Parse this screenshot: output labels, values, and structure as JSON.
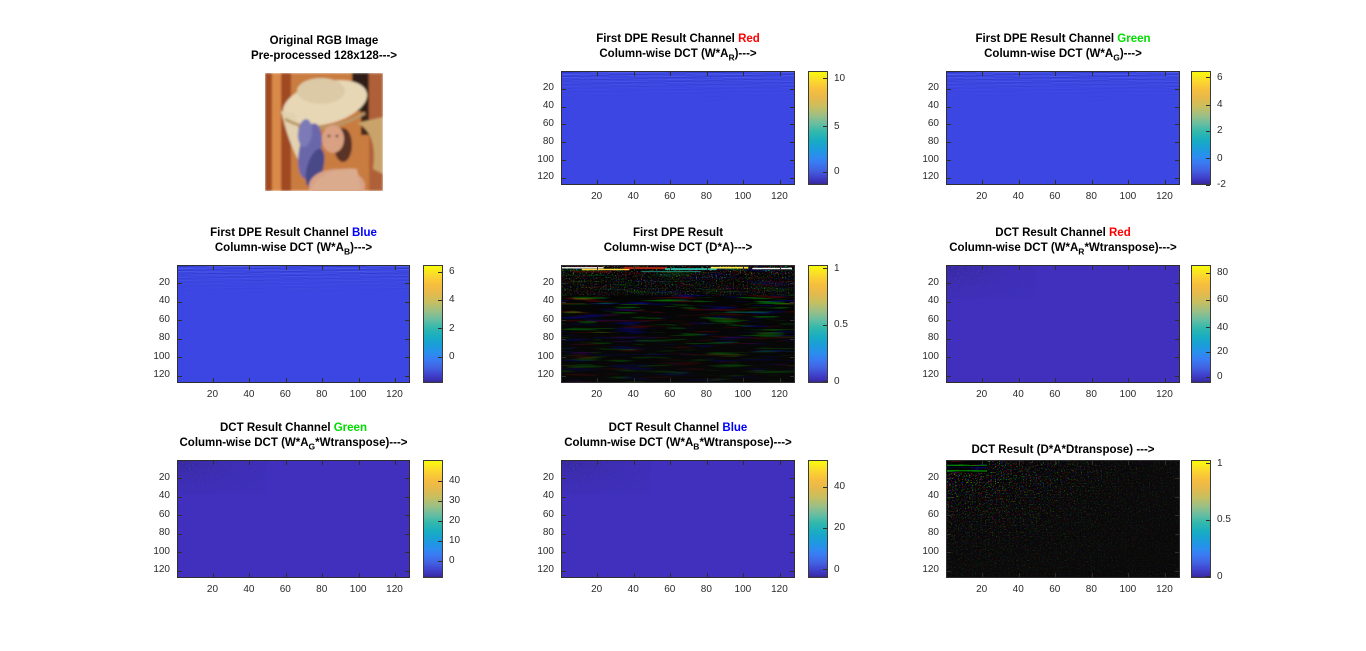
{
  "figure": {
    "background": "#ffffff",
    "kind": "MATLAB figure - DPE / DCT results grid"
  },
  "colors": {
    "red_label": "#ff0000",
    "green_label": "#00dd00",
    "blue_label": "#0000ff",
    "heatmap_blue": "#3c46e2",
    "heatmap_indigo": "#4030bd",
    "heatmap_dark": "#0a0a0a"
  },
  "axis": {
    "x": [
      "20",
      "40",
      "60",
      "80",
      "100",
      "120"
    ],
    "y": [
      "20",
      "40",
      "60",
      "80",
      "100",
      "120"
    ],
    "n": 128
  },
  "panels": [
    {
      "name": "original-rgb-image",
      "row": 0,
      "col": 0,
      "kind": "lena",
      "axes": false,
      "title1": [
        {
          "t": "Original RGB Image"
        }
      ],
      "title2": [
        {
          "t": "Pre-processed 128x128--->"
        }
      ],
      "cb": []
    },
    {
      "name": "first-dpe-red",
      "row": 0,
      "col": 1,
      "kind": "blue",
      "axes": true,
      "title1": [
        {
          "t": "First DPE Result Channel "
        },
        {
          "t": "Red",
          "c": "#ff0000"
        }
      ],
      "title2": [
        {
          "t": "Column-wise DCT (W*A"
        },
        {
          "t": "R",
          "sub": true
        },
        {
          "t": ")--->"
        }
      ],
      "cb": [
        {
          "v": "10",
          "p": 0.07
        },
        {
          "v": "5",
          "p": 0.49
        },
        {
          "v": "0",
          "p": 0.89
        }
      ]
    },
    {
      "name": "first-dpe-green",
      "row": 0,
      "col": 2,
      "kind": "blue",
      "axes": true,
      "title1": [
        {
          "t": "First DPE Result Channel "
        },
        {
          "t": "Green",
          "c": "#00dd00"
        }
      ],
      "title2": [
        {
          "t": "Column-wise DCT (W*A"
        },
        {
          "t": "G",
          "sub": true
        },
        {
          "t": ")--->"
        }
      ],
      "cb": [
        {
          "v": "6",
          "p": 0.06
        },
        {
          "v": "4",
          "p": 0.3
        },
        {
          "v": "2",
          "p": 0.53
        },
        {
          "v": "0",
          "p": 0.77
        },
        {
          "v": "-2",
          "p": 1.0
        }
      ]
    },
    {
      "name": "first-dpe-blue",
      "row": 1,
      "col": 0,
      "kind": "blue",
      "axes": true,
      "title1": [
        {
          "t": "First DPE Result Channel "
        },
        {
          "t": "Blue",
          "c": "#0000ff"
        }
      ],
      "title2": [
        {
          "t": "Column-wise DCT (W*A"
        },
        {
          "t": "B",
          "sub": true
        },
        {
          "t": ")--->"
        }
      ],
      "cb": [
        {
          "v": "6",
          "p": 0.06
        },
        {
          "v": "4",
          "p": 0.3
        },
        {
          "v": "2",
          "p": 0.54
        },
        {
          "v": "0",
          "p": 0.78
        }
      ]
    },
    {
      "name": "first-dpe-combined",
      "row": 1,
      "col": 1,
      "kind": "noise-top",
      "axes": true,
      "title1": [
        {
          "t": "First DPE Result"
        }
      ],
      "title2": [
        {
          "t": "Column-wise DCT (D*A)--->"
        }
      ],
      "cb": [
        {
          "v": "1",
          "p": 0.03
        },
        {
          "v": "0.5",
          "p": 0.51
        },
        {
          "v": "0",
          "p": 0.99
        }
      ]
    },
    {
      "name": "dct-red",
      "row": 1,
      "col": 2,
      "kind": "indigo",
      "axes": true,
      "title1": [
        {
          "t": "DCT Result Channel "
        },
        {
          "t": "Red",
          "c": "#ff0000"
        }
      ],
      "title2": [
        {
          "t": "Column-wise DCT (W*A"
        },
        {
          "t": "R",
          "sub": true
        },
        {
          "t": "*Wtranspose)--->"
        }
      ],
      "cb": [
        {
          "v": "80",
          "p": 0.07
        },
        {
          "v": "60",
          "p": 0.3
        },
        {
          "v": "40",
          "p": 0.53
        },
        {
          "v": "20",
          "p": 0.74
        },
        {
          "v": "0",
          "p": 0.95
        }
      ]
    },
    {
      "name": "dct-green",
      "row": 2,
      "col": 0,
      "kind": "indigo",
      "axes": true,
      "title1": [
        {
          "t": "DCT Result Channel "
        },
        {
          "t": "Green",
          "c": "#00dd00"
        }
      ],
      "title2": [
        {
          "t": "Column-wise DCT (W*A"
        },
        {
          "t": "G",
          "sub": true
        },
        {
          "t": "*Wtranspose)--->"
        }
      ],
      "cb": [
        {
          "v": "40",
          "p": 0.18
        },
        {
          "v": "30",
          "p": 0.35
        },
        {
          "v": "20",
          "p": 0.52
        },
        {
          "v": "10",
          "p": 0.69
        },
        {
          "v": "0",
          "p": 0.86
        }
      ]
    },
    {
      "name": "dct-blue",
      "row": 2,
      "col": 1,
      "kind": "indigo",
      "axes": true,
      "title1": [
        {
          "t": "DCT Result Channel "
        },
        {
          "t": "Blue",
          "c": "#0000ff"
        }
      ],
      "title2": [
        {
          "t": "Column-wise DCT (W*A"
        },
        {
          "t": "B",
          "sub": true
        },
        {
          "t": "*Wtranspose)--->"
        }
      ],
      "cb": [
        {
          "v": "40",
          "p": 0.23
        },
        {
          "v": "20",
          "p": 0.58
        },
        {
          "v": "0",
          "p": 0.93
        }
      ]
    },
    {
      "name": "dct-combined",
      "row": 2,
      "col": 2,
      "kind": "noise-corner",
      "axes": true,
      "title1": [],
      "title2": [
        {
          "t": "DCT Result (D*A*Dtranspose) --->"
        }
      ],
      "cb": [
        {
          "v": "1",
          "p": 0.03
        },
        {
          "v": "0.5",
          "p": 0.51
        },
        {
          "v": "0",
          "p": 0.99
        }
      ]
    }
  ],
  "chart_data": [
    {
      "panel": "original-rgb-image",
      "type": "image",
      "title": "Original RGB Image / Pre-processed 128x128--->",
      "image_size": "128x128",
      "appearance": "Lena standard test image: woman with cream straw hat, purple feather, warm orange background"
    },
    {
      "panel": "first-dpe-red",
      "type": "heatmap",
      "title": "First DPE Result Channel Red / Column-wise DCT (W*A_R)--->",
      "matrix_size": "128x128",
      "x_ticks": [
        20,
        40,
        60,
        80,
        100,
        120
      ],
      "y_ticks": [
        20,
        40,
        60,
        80,
        100,
        120
      ],
      "colorbar_ticks": [
        10,
        5,
        0
      ],
      "colormap": "parula",
      "appearance": "near-uniform value ~0 (medium blue) with low-amplitude horizontal streaks in first ~10 rows"
    },
    {
      "panel": "first-dpe-green",
      "type": "heatmap",
      "title": "First DPE Result Channel Green / Column-wise DCT (W*A_G)--->",
      "matrix_size": "128x128",
      "x_ticks": [
        20,
        40,
        60,
        80,
        100,
        120
      ],
      "y_ticks": [
        20,
        40,
        60,
        80,
        100,
        120
      ],
      "colorbar_ticks": [
        6,
        4,
        2,
        0,
        -2
      ],
      "colormap": "parula",
      "appearance": "near-uniform ~0 (medium blue) with darker streaks concentrated in top rows"
    },
    {
      "panel": "first-dpe-blue",
      "type": "heatmap",
      "title": "First DPE Result Channel Blue / Column-wise DCT (W*A_B)--->",
      "matrix_size": "128x128",
      "x_ticks": [
        20,
        40,
        60,
        80,
        100,
        120
      ],
      "y_ticks": [
        20,
        40,
        60,
        80,
        100,
        120
      ],
      "colorbar_ticks": [
        6,
        4,
        2,
        0
      ],
      "colormap": "parula",
      "appearance": "near-uniform ~0 (medium blue) with faint streaks in top rows"
    },
    {
      "panel": "first-dpe-combined",
      "type": "heatmap",
      "title": "First DPE Result / Column-wise DCT (D*A)--->",
      "matrix_size": "128x128",
      "x_ticks": [
        20,
        40,
        60,
        80,
        100,
        120
      ],
      "y_ticks": [
        20,
        40,
        60,
        80,
        100,
        120
      ],
      "colorbar_ticks": [
        1,
        0.5,
        0
      ],
      "colormap": "rgb-composite",
      "appearance": "mostly black with bright white/yellow/red/cyan streaks in the first few rows and faint dark teal wavy filaments below"
    },
    {
      "panel": "dct-red",
      "type": "heatmap",
      "title": "DCT Result Channel Red / Column-wise DCT (W*A_R*Wtranspose)--->",
      "matrix_size": "128x128",
      "x_ticks": [
        20,
        40,
        60,
        80,
        100,
        120
      ],
      "y_ticks": [
        20,
        40,
        60,
        80,
        100,
        120
      ],
      "colorbar_ticks": [
        80,
        60,
        40,
        20,
        0
      ],
      "colormap": "parula",
      "appearance": "near-uniform ~0 (dark indigo) with very faint energy in top-left corner"
    },
    {
      "panel": "dct-green",
      "type": "heatmap",
      "title": "DCT Result Channel Green / Column-wise DCT (W*A_G*Wtranspose)--->",
      "matrix_size": "128x128",
      "x_ticks": [
        20,
        40,
        60,
        80,
        100,
        120
      ],
      "y_ticks": [
        20,
        40,
        60,
        80,
        100,
        120
      ],
      "colorbar_ticks": [
        40,
        30,
        20,
        10,
        0
      ],
      "colormap": "parula",
      "appearance": "near-uniform ~0 (dark indigo) with very faint energy in top-left corner"
    },
    {
      "panel": "dct-blue",
      "type": "heatmap",
      "title": "DCT Result Channel Blue / Column-wise DCT (W*A_B*Wtranspose)--->",
      "matrix_size": "128x128",
      "x_ticks": [
        20,
        40,
        60,
        80,
        100,
        120
      ],
      "y_ticks": [
        20,
        40,
        60,
        80,
        100,
        120
      ],
      "colorbar_ticks": [
        40,
        20,
        0
      ],
      "colormap": "parula",
      "appearance": "near-uniform ~0 (dark indigo) with very faint speckle in top-left corner"
    },
    {
      "panel": "dct-combined",
      "type": "heatmap",
      "title": "DCT Result (D*A*Dtranspose) --->",
      "matrix_size": "128x128",
      "x_ticks": [
        20,
        40,
        60,
        80,
        100,
        120
      ],
      "y_ticks": [
        20,
        40,
        60,
        80,
        100,
        120
      ],
      "colorbar_ticks": [
        1,
        0.5,
        0
      ],
      "colormap": "rgb-composite",
      "appearance": "mostly black with dense colorful RGB speckles in top-left corner fading toward bottom-right"
    }
  ]
}
